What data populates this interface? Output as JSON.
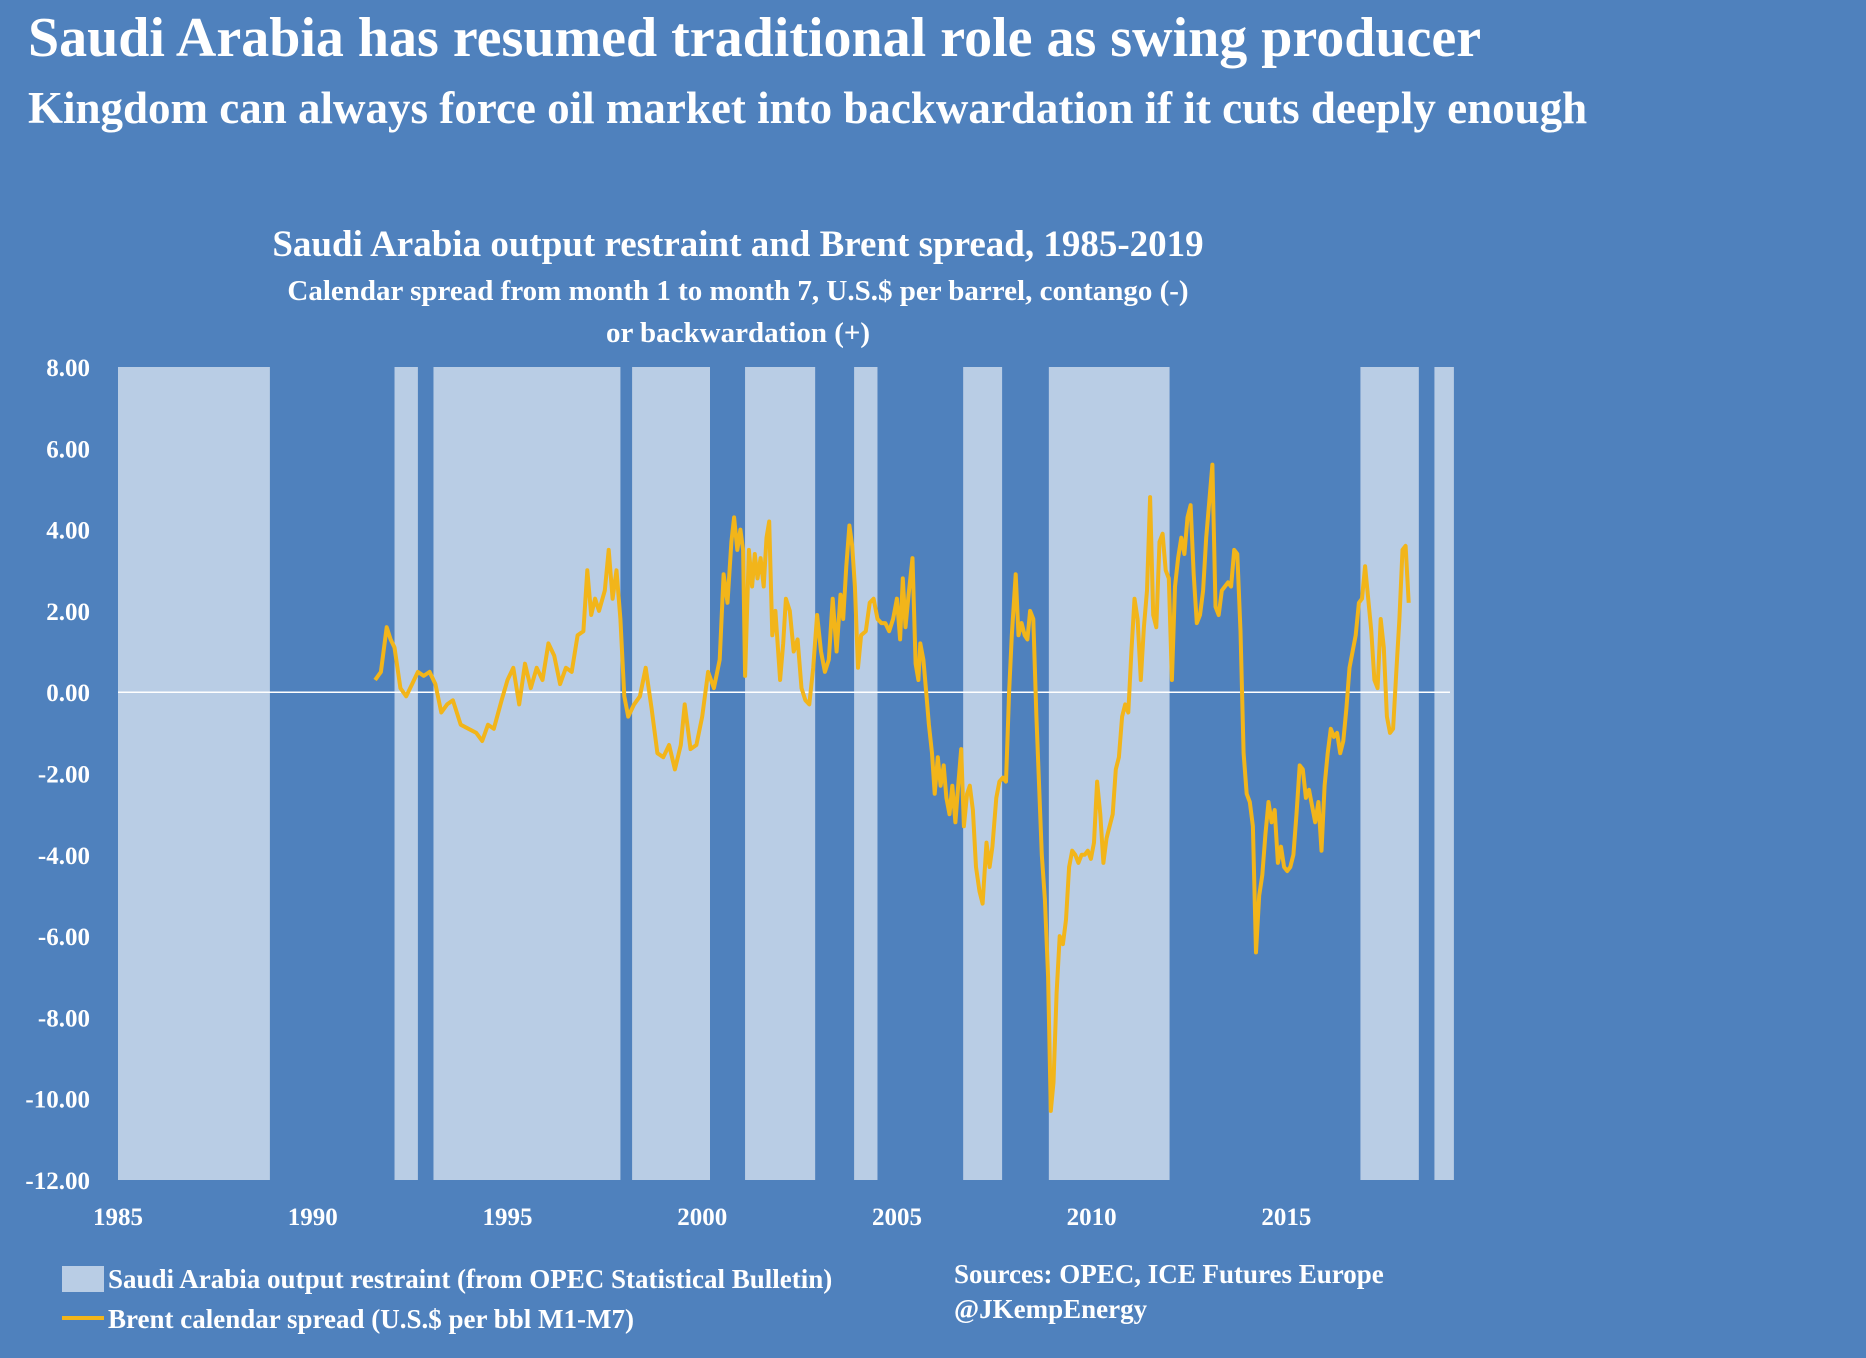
{
  "header": {
    "headline": "Saudi Arabia has resumed traditional role as swing producer",
    "subheadline": "Kingdom can always force oil market into backwardation if it cuts deeply enough"
  },
  "chart_data": {
    "type": "line",
    "title": "Saudi Arabia output restraint and Brent spread, 1985-2019",
    "subtitle_line1": "Calendar spread from month 1 to month 7, U.S.$ per barrel, contango (-)",
    "subtitle_line2": "or backwardation (+)",
    "xlabel": "",
    "ylabel": "",
    "xlim": [
      1985,
      2020
    ],
    "ylim": [
      -12,
      8
    ],
    "y_ticks": [
      "8.00",
      "6.00",
      "4.00",
      "2.00",
      "0.00",
      "-2.00",
      "-4.00",
      "-6.00",
      "-8.00",
      "-10.00",
      "-12.00"
    ],
    "x_ticks": [
      "1985",
      "1990",
      "1995",
      "2000",
      "2005",
      "2010",
      "2015"
    ],
    "restraint_periods": [
      [
        1985.0,
        1988.9
      ],
      [
        1992.1,
        1992.7
      ],
      [
        1993.1,
        1997.9
      ],
      [
        1998.2,
        2000.2
      ],
      [
        2001.1,
        2002.9
      ],
      [
        2003.9,
        2004.5
      ],
      [
        2006.7,
        2007.7
      ],
      [
        2008.9,
        2012.0
      ],
      [
        2016.9,
        2018.4
      ],
      [
        2018.8,
        2019.3
      ]
    ],
    "series": [
      {
        "name": "Brent calendar spread (U.S.$ per bbl M1-M7)",
        "color": "#f2b51a",
        "points": [
          [
            1991.6,
            0.3
          ],
          [
            1991.75,
            0.5
          ],
          [
            1991.9,
            1.6
          ],
          [
            1992.0,
            1.3
          ],
          [
            1992.1,
            1.1
          ],
          [
            1992.25,
            0.1
          ],
          [
            1992.4,
            -0.1
          ],
          [
            1992.55,
            0.2
          ],
          [
            1992.7,
            0.5
          ],
          [
            1992.85,
            0.4
          ],
          [
            1993.0,
            0.5
          ],
          [
            1993.15,
            0.2
          ],
          [
            1993.3,
            -0.5
          ],
          [
            1993.45,
            -0.3
          ],
          [
            1993.6,
            -0.2
          ],
          [
            1993.8,
            -0.8
          ],
          [
            1994.0,
            -0.9
          ],
          [
            1994.2,
            -1.0
          ],
          [
            1994.35,
            -1.2
          ],
          [
            1994.5,
            -0.8
          ],
          [
            1994.65,
            -0.9
          ],
          [
            1994.85,
            -0.2
          ],
          [
            1995.0,
            0.3
          ],
          [
            1995.15,
            0.6
          ],
          [
            1995.3,
            -0.3
          ],
          [
            1995.45,
            0.7
          ],
          [
            1995.6,
            0.1
          ],
          [
            1995.75,
            0.6
          ],
          [
            1995.9,
            0.3
          ],
          [
            1996.05,
            1.2
          ],
          [
            1996.2,
            0.9
          ],
          [
            1996.35,
            0.2
          ],
          [
            1996.5,
            0.6
          ],
          [
            1996.65,
            0.5
          ],
          [
            1996.8,
            1.4
          ],
          [
            1996.95,
            1.5
          ],
          [
            1997.05,
            3.0
          ],
          [
            1997.15,
            1.9
          ],
          [
            1997.25,
            2.3
          ],
          [
            1997.35,
            2.0
          ],
          [
            1997.5,
            2.5
          ],
          [
            1997.6,
            3.5
          ],
          [
            1997.7,
            2.3
          ],
          [
            1997.8,
            3.0
          ],
          [
            1997.9,
            1.8
          ],
          [
            1998.0,
            -0.1
          ],
          [
            1998.1,
            -0.6
          ],
          [
            1998.25,
            -0.3
          ],
          [
            1998.4,
            -0.1
          ],
          [
            1998.55,
            0.6
          ],
          [
            1998.7,
            -0.4
          ],
          [
            1998.85,
            -1.5
          ],
          [
            1999.0,
            -1.6
          ],
          [
            1999.15,
            -1.3
          ],
          [
            1999.3,
            -1.9
          ],
          [
            1999.45,
            -1.3
          ],
          [
            1999.55,
            -0.3
          ],
          [
            1999.7,
            -1.4
          ],
          [
            1999.85,
            -1.3
          ],
          [
            2000.0,
            -0.6
          ],
          [
            2000.15,
            0.5
          ],
          [
            2000.3,
            0.1
          ],
          [
            2000.45,
            0.8
          ],
          [
            2000.55,
            2.9
          ],
          [
            2000.65,
            2.2
          ],
          [
            2000.75,
            3.7
          ],
          [
            2000.82,
            4.3
          ],
          [
            2000.9,
            3.5
          ],
          [
            2000.98,
            4.0
          ],
          [
            2001.05,
            3.5
          ],
          [
            2001.1,
            0.4
          ],
          [
            2001.2,
            3.5
          ],
          [
            2001.28,
            2.6
          ],
          [
            2001.35,
            3.4
          ],
          [
            2001.42,
            2.8
          ],
          [
            2001.5,
            3.3
          ],
          [
            2001.58,
            2.6
          ],
          [
            2001.65,
            3.8
          ],
          [
            2001.72,
            4.2
          ],
          [
            2001.8,
            1.4
          ],
          [
            2001.88,
            2.0
          ],
          [
            2002.0,
            0.3
          ],
          [
            2002.08,
            1.2
          ],
          [
            2002.15,
            2.3
          ],
          [
            2002.25,
            2.0
          ],
          [
            2002.35,
            1.0
          ],
          [
            2002.45,
            1.3
          ],
          [
            2002.55,
            0.1
          ],
          [
            2002.65,
            -0.2
          ],
          [
            2002.75,
            -0.3
          ],
          [
            2002.85,
            0.6
          ],
          [
            2002.95,
            1.9
          ],
          [
            2003.05,
            1.0
          ],
          [
            2003.15,
            0.5
          ],
          [
            2003.25,
            0.8
          ],
          [
            2003.35,
            2.3
          ],
          [
            2003.45,
            1.0
          ],
          [
            2003.55,
            2.4
          ],
          [
            2003.62,
            1.8
          ],
          [
            2003.7,
            3.1
          ],
          [
            2003.78,
            4.1
          ],
          [
            2003.85,
            3.6
          ],
          [
            2003.92,
            2.6
          ],
          [
            2004.0,
            0.6
          ],
          [
            2004.08,
            1.4
          ],
          [
            2004.2,
            1.5
          ],
          [
            2004.3,
            2.2
          ],
          [
            2004.4,
            2.3
          ],
          [
            2004.5,
            1.8
          ],
          [
            2004.6,
            1.7
          ],
          [
            2004.7,
            1.7
          ],
          [
            2004.8,
            1.5
          ],
          [
            2004.9,
            1.8
          ],
          [
            2005.0,
            2.3
          ],
          [
            2005.08,
            1.3
          ],
          [
            2005.15,
            2.8
          ],
          [
            2005.22,
            1.6
          ],
          [
            2005.3,
            2.4
          ],
          [
            2005.4,
            3.3
          ],
          [
            2005.48,
            0.7
          ],
          [
            2005.55,
            0.3
          ],
          [
            2005.6,
            1.2
          ],
          [
            2005.68,
            0.8
          ],
          [
            2005.75,
            0.0
          ],
          [
            2005.82,
            -0.8
          ],
          [
            2005.9,
            -1.5
          ],
          [
            2005.97,
            -2.5
          ],
          [
            2006.05,
            -1.6
          ],
          [
            2006.12,
            -2.3
          ],
          [
            2006.2,
            -1.8
          ],
          [
            2006.27,
            -2.6
          ],
          [
            2006.35,
            -3.0
          ],
          [
            2006.42,
            -2.3
          ],
          [
            2006.5,
            -3.2
          ],
          [
            2006.58,
            -2.2
          ],
          [
            2006.65,
            -1.4
          ],
          [
            2006.72,
            -3.3
          ],
          [
            2006.8,
            -2.5
          ],
          [
            2006.87,
            -2.3
          ],
          [
            2006.95,
            -2.9
          ],
          [
            2007.03,
            -4.3
          ],
          [
            2007.12,
            -4.9
          ],
          [
            2007.2,
            -5.2
          ],
          [
            2007.3,
            -3.7
          ],
          [
            2007.38,
            -4.3
          ],
          [
            2007.45,
            -3.8
          ],
          [
            2007.55,
            -2.6
          ],
          [
            2007.63,
            -2.2
          ],
          [
            2007.72,
            -2.1
          ],
          [
            2007.8,
            -2.2
          ],
          [
            2007.88,
            0.0
          ],
          [
            2007.95,
            1.4
          ],
          [
            2008.05,
            2.9
          ],
          [
            2008.12,
            1.4
          ],
          [
            2008.2,
            1.7
          ],
          [
            2008.28,
            1.4
          ],
          [
            2008.35,
            1.3
          ],
          [
            2008.42,
            2.0
          ],
          [
            2008.5,
            1.8
          ],
          [
            2008.58,
            -0.6
          ],
          [
            2008.65,
            -2.3
          ],
          [
            2008.72,
            -4.0
          ],
          [
            2008.8,
            -5.1
          ],
          [
            2008.88,
            -7.0
          ],
          [
            2008.95,
            -10.3
          ],
          [
            2009.02,
            -9.6
          ],
          [
            2009.1,
            -7.4
          ],
          [
            2009.18,
            -6.0
          ],
          [
            2009.26,
            -6.2
          ],
          [
            2009.34,
            -5.6
          ],
          [
            2009.42,
            -4.3
          ],
          [
            2009.5,
            -3.9
          ],
          [
            2009.58,
            -4.0
          ],
          [
            2009.66,
            -4.2
          ],
          [
            2009.74,
            -4.0
          ],
          [
            2009.82,
            -4.0
          ],
          [
            2009.9,
            -3.9
          ],
          [
            2009.98,
            -4.1
          ],
          [
            2010.06,
            -3.7
          ],
          [
            2010.14,
            -2.2
          ],
          [
            2010.22,
            -3.0
          ],
          [
            2010.3,
            -4.2
          ],
          [
            2010.38,
            -3.6
          ],
          [
            2010.46,
            -3.3
          ],
          [
            2010.54,
            -3.0
          ],
          [
            2010.62,
            -1.9
          ],
          [
            2010.7,
            -1.6
          ],
          [
            2010.78,
            -0.6
          ],
          [
            2010.86,
            -0.3
          ],
          [
            2010.94,
            -0.5
          ],
          [
            2011.02,
            1.0
          ],
          [
            2011.1,
            2.3
          ],
          [
            2011.18,
            1.8
          ],
          [
            2011.26,
            0.3
          ],
          [
            2011.34,
            1.6
          ],
          [
            2011.42,
            2.5
          ],
          [
            2011.5,
            4.8
          ],
          [
            2011.58,
            1.9
          ],
          [
            2011.66,
            1.6
          ],
          [
            2011.74,
            3.7
          ],
          [
            2011.82,
            3.9
          ],
          [
            2011.9,
            3.0
          ],
          [
            2011.98,
            2.8
          ],
          [
            2012.06,
            0.3
          ],
          [
            2012.14,
            2.6
          ],
          [
            2012.22,
            3.3
          ],
          [
            2012.3,
            3.8
          ],
          [
            2012.38,
            3.4
          ],
          [
            2012.46,
            4.3
          ],
          [
            2012.54,
            4.6
          ],
          [
            2012.62,
            2.9
          ],
          [
            2012.7,
            1.7
          ],
          [
            2012.78,
            1.9
          ],
          [
            2012.86,
            2.5
          ],
          [
            2012.94,
            3.8
          ],
          [
            2013.02,
            4.7
          ],
          [
            2013.1,
            5.6
          ],
          [
            2013.18,
            2.1
          ],
          [
            2013.26,
            1.9
          ],
          [
            2013.34,
            2.5
          ],
          [
            2013.42,
            2.6
          ],
          [
            2013.5,
            2.7
          ],
          [
            2013.58,
            2.6
          ],
          [
            2013.66,
            3.5
          ],
          [
            2013.74,
            3.4
          ],
          [
            2013.82,
            1.5
          ],
          [
            2013.9,
            -1.5
          ],
          [
            2013.98,
            -2.5
          ],
          [
            2014.06,
            -2.7
          ],
          [
            2014.14,
            -3.3
          ],
          [
            2014.22,
            -6.4
          ],
          [
            2014.3,
            -5.0
          ],
          [
            2014.38,
            -4.5
          ],
          [
            2014.46,
            -3.5
          ],
          [
            2014.54,
            -2.7
          ],
          [
            2014.62,
            -3.2
          ],
          [
            2014.7,
            -2.9
          ],
          [
            2014.78,
            -4.2
          ],
          [
            2014.86,
            -3.8
          ],
          [
            2014.94,
            -4.3
          ],
          [
            2015.02,
            -4.4
          ],
          [
            2015.1,
            -4.3
          ],
          [
            2015.18,
            -4.0
          ],
          [
            2015.26,
            -3.0
          ],
          [
            2015.34,
            -1.8
          ],
          [
            2015.42,
            -1.9
          ],
          [
            2015.5,
            -2.6
          ],
          [
            2015.58,
            -2.4
          ],
          [
            2015.66,
            -2.8
          ],
          [
            2015.74,
            -3.2
          ],
          [
            2015.82,
            -2.7
          ],
          [
            2015.9,
            -3.9
          ],
          [
            2015.98,
            -2.3
          ],
          [
            2016.06,
            -1.5
          ],
          [
            2016.14,
            -0.9
          ],
          [
            2016.22,
            -1.1
          ],
          [
            2016.3,
            -1.0
          ],
          [
            2016.38,
            -1.5
          ],
          [
            2016.46,
            -1.2
          ],
          [
            2016.54,
            -0.4
          ],
          [
            2016.62,
            0.6
          ],
          [
            2016.7,
            1.0
          ],
          [
            2016.78,
            1.4
          ],
          [
            2016.86,
            2.2
          ],
          [
            2016.94,
            2.3
          ],
          [
            2017.02,
            3.1
          ],
          [
            2017.1,
            2.3
          ],
          [
            2017.18,
            1.5
          ],
          [
            2017.26,
            0.3
          ],
          [
            2017.34,
            0.1
          ],
          [
            2017.42,
            1.8
          ],
          [
            2017.5,
            1.1
          ],
          [
            2017.58,
            -0.6
          ],
          [
            2017.66,
            -1.0
          ],
          [
            2017.74,
            -0.9
          ],
          [
            2017.82,
            0.5
          ],
          [
            2017.9,
            1.8
          ],
          [
            2017.98,
            3.5
          ],
          [
            2018.06,
            3.6
          ],
          [
            2018.14,
            2.2
          ]
        ]
      }
    ],
    "legend": [
      {
        "label": "Saudi Arabia output restraint (from OPEC Statistical Bulletin)",
        "swatch": "bar",
        "color": "#b9cde5"
      },
      {
        "label": "Brent calendar spread (U.S.$ per bbl M1-M7)",
        "swatch": "line",
        "color": "#f2b51a"
      }
    ],
    "sources_line1": "Sources: OPEC, ICE Futures Europe",
    "sources_line2": "@JKempEnergy"
  }
}
